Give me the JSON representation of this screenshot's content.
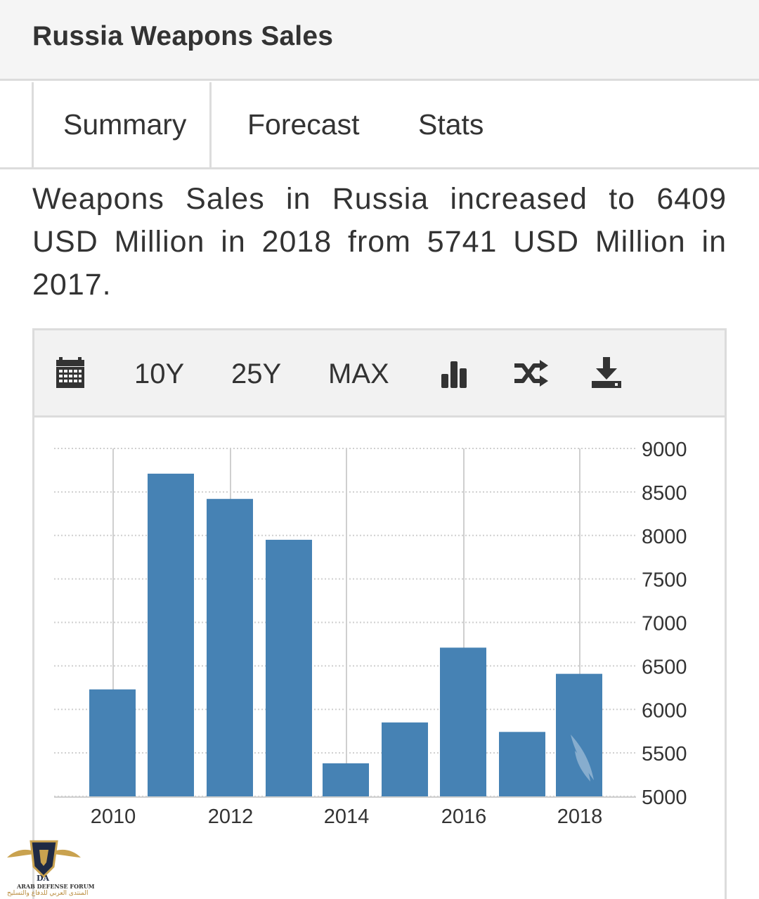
{
  "header": {
    "title": "Russia Weapons Sales"
  },
  "tabs": [
    {
      "label": "Summary",
      "active": true
    },
    {
      "label": "Forecast",
      "active": false
    },
    {
      "label": "Stats",
      "active": false
    }
  ],
  "summary_text": "Weapons Sales in Russia increased to 6409 USD Million in 2018 from 5741 USD Million in 2017.",
  "toolbar": {
    "calendar_icon": "calendar-icon",
    "range_10y": "10Y",
    "range_25y": "25Y",
    "range_max": "MAX",
    "chart_type_icon": "bar-chart-icon",
    "compare_icon": "shuffle-icon",
    "download_icon": "download-icon"
  },
  "colors": {
    "bar": "#4682b4",
    "grid": "#cfcfcf",
    "text": "#333333",
    "watermark_gold": "#b88a3a"
  },
  "chart_data": {
    "type": "bar",
    "categories": [
      "2010",
      "2011",
      "2012",
      "2013",
      "2014",
      "2015",
      "2016",
      "2017",
      "2018"
    ],
    "values": [
      6230,
      8710,
      8420,
      7950,
      5380,
      5850,
      6710,
      5741,
      6409
    ],
    "x_tick_labels": [
      "2010",
      "2012",
      "2014",
      "2016",
      "2018"
    ],
    "y_ticks": [
      5000,
      5500,
      6000,
      6500,
      7000,
      7500,
      8000,
      8500,
      9000
    ],
    "ylim": [
      5000,
      9000
    ],
    "y_axis_position": "right",
    "grid": true,
    "title": "",
    "xlabel": "",
    "ylabel": ""
  },
  "watermark": {
    "line1": "ARAB DEFENSE FORUM",
    "line2": "المنتدى العربي للدفاع والتسليح",
    "badge": "DA"
  }
}
